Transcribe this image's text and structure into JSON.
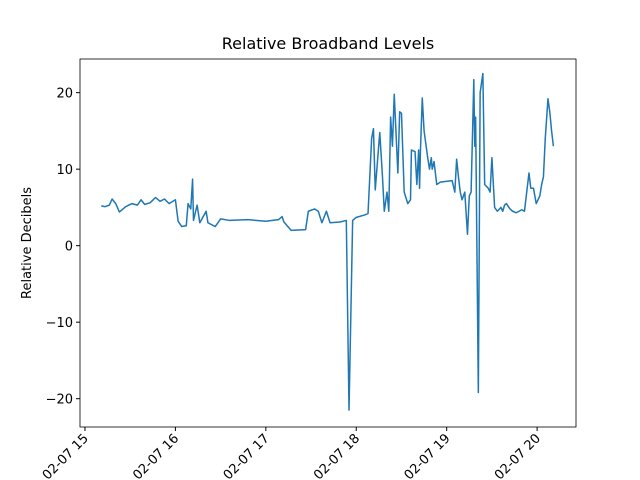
{
  "chart_data": {
    "type": "line",
    "title": "Relative Broadband Levels",
    "ylabel": "Relative Decibels",
    "xlim": [
      14.945,
      20.43
    ],
    "ylim": [
      -23.7,
      24.4
    ],
    "xticks": [
      {
        "value": 15,
        "label": "02-07 15"
      },
      {
        "value": 16,
        "label": "02-07 16"
      },
      {
        "value": 17,
        "label": "02-07 17"
      },
      {
        "value": 18,
        "label": "02-07 18"
      },
      {
        "value": 19,
        "label": "02-07 19"
      },
      {
        "value": 20,
        "label": "02-07 20"
      }
    ],
    "yticks": [
      {
        "value": -20,
        "label": "−20"
      },
      {
        "value": -10,
        "label": "−10"
      },
      0,
      10,
      20
    ],
    "color": "#1f77b4",
    "x": [
      15.18,
      15.22,
      15.27,
      15.3,
      15.34,
      15.38,
      15.45,
      15.52,
      15.58,
      15.62,
      15.66,
      15.72,
      15.78,
      15.83,
      15.88,
      15.93,
      16.0,
      16.03,
      16.07,
      16.12,
      16.14,
      16.17,
      16.19,
      16.2,
      16.24,
      16.27,
      16.34,
      16.36,
      16.44,
      16.5,
      16.6,
      16.8,
      17.0,
      17.14,
      17.18,
      17.2,
      17.28,
      17.44,
      17.47,
      17.54,
      17.58,
      17.62,
      17.67,
      17.71,
      17.82,
      17.89,
      17.92,
      17.96,
      18.0,
      18.09,
      18.13,
      18.17,
      18.19,
      18.21,
      18.26,
      18.29,
      18.31,
      18.34,
      18.36,
      18.38,
      18.4,
      18.42,
      18.46,
      18.48,
      18.5,
      18.53,
      18.57,
      18.6,
      18.61,
      18.65,
      18.67,
      18.69,
      18.7,
      18.71,
      18.73,
      18.75,
      18.79,
      18.81,
      18.83,
      18.84,
      18.86,
      18.89,
      18.93,
      19.06,
      19.09,
      19.11,
      19.13,
      19.15,
      19.17,
      19.2,
      19.23,
      19.25,
      19.27,
      19.3,
      19.31,
      19.32,
      19.35,
      19.37,
      19.4,
      19.42,
      19.46,
      19.48,
      19.5,
      19.53,
      19.56,
      19.6,
      19.62,
      19.64,
      19.66,
      19.7,
      19.73,
      19.77,
      19.83,
      19.86,
      19.89,
      19.91,
      19.93,
      19.96,
      19.99,
      20.03,
      20.05,
      20.07,
      20.09,
      20.12,
      20.14,
      20.16,
      20.18
    ],
    "values": [
      5.2,
      5.1,
      5.3,
      6.1,
      5.5,
      4.4,
      5.1,
      5.5,
      5.3,
      6.0,
      5.4,
      5.6,
      6.3,
      5.8,
      6.1,
      5.5,
      6.0,
      3.2,
      2.5,
      2.6,
      5.5,
      4.8,
      8.7,
      3.3,
      5.3,
      3.0,
      4.5,
      3.0,
      2.5,
      3.5,
      3.3,
      3.4,
      3.2,
      3.4,
      3.8,
      3.1,
      2.0,
      2.1,
      4.5,
      4.8,
      4.5,
      3.0,
      4.5,
      3.0,
      3.1,
      3.3,
      -21.5,
      3.3,
      3.7,
      4.0,
      4.2,
      14.0,
      15.3,
      7.3,
      14.8,
      9.0,
      4.5,
      7.0,
      4.5,
      16.8,
      13.0,
      19.8,
      9.5,
      17.5,
      17.3,
      7.0,
      5.5,
      6.0,
      12.5,
      12.3,
      8.0,
      12.5,
      7.5,
      12.5,
      19.3,
      15.0,
      11.5,
      10.0,
      11.5,
      10.0,
      11.0,
      8.0,
      8.3,
      8.5,
      7.0,
      11.3,
      9.0,
      7.0,
      6.0,
      7.0,
      1.5,
      6.5,
      7.0,
      21.7,
      13.0,
      16.8,
      -19.2,
      20.0,
      22.5,
      8.0,
      7.5,
      7.0,
      11.5,
      5.0,
      4.5,
      5.0,
      4.5,
      5.3,
      5.5,
      4.8,
      4.5,
      4.3,
      4.7,
      4.5,
      7.5,
      9.5,
      7.5,
      7.5,
      5.5,
      6.5,
      8.0,
      9.0,
      14.0,
      19.2,
      17.5,
      15.0,
      13.0
    ]
  }
}
